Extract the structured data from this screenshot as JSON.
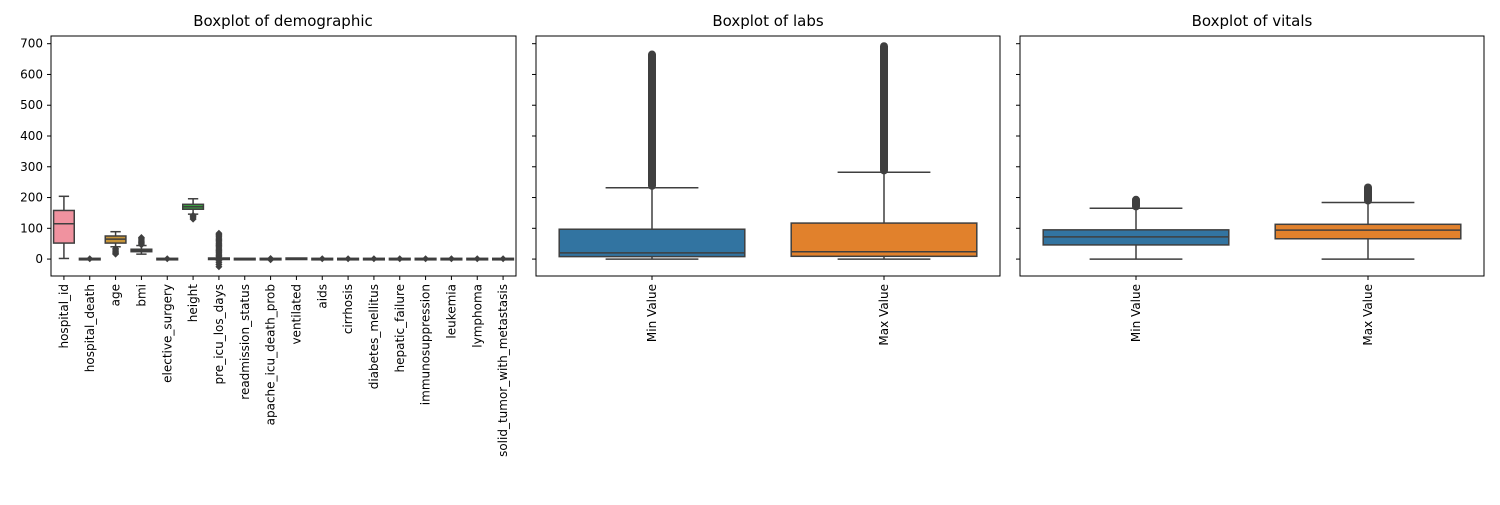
{
  "chart_data": [
    {
      "type": "box",
      "title": "Boxplot of demographic",
      "ylim": [
        -55,
        725
      ],
      "yticks": [
        0,
        100,
        200,
        300,
        400,
        500,
        600,
        700
      ],
      "categories": [
        "hospital_id",
        "hospital_death",
        "age",
        "bmi",
        "elective_surgery",
        "height",
        "pre_icu_los_days",
        "readmission_status",
        "apache_icu_death_prob",
        "ventilated",
        "aids",
        "cirrhosis",
        "diabetes_mellitus",
        "hepatic_failure",
        "immunosuppression",
        "leukemia",
        "lymphoma",
        "solid_tumor_with_metastasis"
      ],
      "colors": [
        "#f0929f",
        "#e99263",
        "#c8963a",
        "#a39c36",
        "#80a237",
        "#38a33f",
        "#3aa57d",
        "#3ca391",
        "#3ea0a0",
        "#3fa2b2",
        "#41a3c9",
        "#52a1e6",
        "#9a8ee6",
        "#cb7fe6",
        "#f07ae0",
        "#f47fbf",
        "#f485a5",
        "#f0929f"
      ],
      "boxes": [
        {
          "whislo": 2,
          "q1": 52,
          "med": 115,
          "q3": 158,
          "whishi": 204,
          "fliers": []
        },
        {
          "whislo": 0,
          "q1": 0,
          "med": 0,
          "q3": 0,
          "whishi": 0,
          "fliers": [
            1
          ]
        },
        {
          "whislo": 40,
          "q1": 52,
          "med": 65,
          "q3": 75,
          "whishi": 89,
          "fliers": [
            16,
            18,
            22,
            26,
            30,
            34
          ]
        },
        {
          "whislo": 16,
          "q1": 24,
          "med": 28,
          "q3": 32,
          "whishi": 44,
          "fliers": [
            46,
            50,
            54,
            58,
            62,
            66,
            70
          ]
        },
        {
          "whislo": 0,
          "q1": 0,
          "med": 0,
          "q3": 0,
          "whishi": 0,
          "fliers": [
            1
          ]
        },
        {
          "whislo": 146,
          "q1": 162,
          "med": 170,
          "q3": 178,
          "whishi": 196,
          "fliers": [
            130,
            134,
            138,
            142
          ]
        },
        {
          "whislo": 0,
          "q1": 0,
          "med": 0.2,
          "q3": 1,
          "whishi": 2,
          "fliers": [
            -25,
            -18,
            -12,
            -6,
            4,
            8,
            12,
            16,
            20,
            24,
            28,
            32,
            36,
            40,
            44,
            48,
            52,
            56,
            60,
            64,
            68,
            72,
            76,
            80,
            84
          ]
        },
        {
          "whislo": 0,
          "q1": 0,
          "med": 0,
          "q3": 0,
          "whishi": 0,
          "fliers": []
        },
        {
          "whislo": 0,
          "q1": 0,
          "med": 0,
          "q3": 0,
          "whishi": 0,
          "fliers": [
            -2,
            2
          ]
        },
        {
          "whislo": 0,
          "q1": 0,
          "med": 0,
          "q3": 1,
          "whishi": 1,
          "fliers": []
        },
        {
          "whislo": 0,
          "q1": 0,
          "med": 0,
          "q3": 0,
          "whishi": 0,
          "fliers": [
            1
          ]
        },
        {
          "whislo": 0,
          "q1": 0,
          "med": 0,
          "q3": 0,
          "whishi": 0,
          "fliers": [
            1
          ]
        },
        {
          "whislo": 0,
          "q1": 0,
          "med": 0,
          "q3": 0,
          "whishi": 0,
          "fliers": [
            1
          ]
        },
        {
          "whislo": 0,
          "q1": 0,
          "med": 0,
          "q3": 0,
          "whishi": 0,
          "fliers": [
            1
          ]
        },
        {
          "whislo": 0,
          "q1": 0,
          "med": 0,
          "q3": 0,
          "whishi": 0,
          "fliers": [
            1
          ]
        },
        {
          "whislo": 0,
          "q1": 0,
          "med": 0,
          "q3": 0,
          "whishi": 0,
          "fliers": [
            1
          ]
        },
        {
          "whislo": 0,
          "q1": 0,
          "med": 0,
          "q3": 0,
          "whishi": 0,
          "fliers": [
            1
          ]
        },
        {
          "whislo": 0,
          "q1": 0,
          "med": 0,
          "q3": 0,
          "whishi": 0,
          "fliers": [
            1
          ]
        }
      ]
    },
    {
      "type": "box",
      "title": "Boxplot of labs",
      "ylim": [
        -55,
        725
      ],
      "categories": [
        "Min Value",
        "Max Value"
      ],
      "colors": [
        "#3274a1",
        "#e1812c"
      ],
      "boxes": [
        {
          "whislo": 0,
          "q1": 8,
          "med": 20,
          "q3": 97,
          "whishi": 232,
          "flier_range": [
            235,
            668
          ]
        },
        {
          "whislo": 0,
          "q1": 9,
          "med": 24,
          "q3": 117,
          "whishi": 282,
          "flier_range": [
            285,
            695
          ]
        }
      ]
    },
    {
      "type": "box",
      "title": "Boxplot of vitals",
      "ylim": [
        -55,
        725
      ],
      "categories": [
        "Min Value",
        "Max Value"
      ],
      "colors": [
        "#3274a1",
        "#e1812c"
      ],
      "boxes": [
        {
          "whislo": 0,
          "q1": 46,
          "med": 72,
          "q3": 95,
          "whishi": 165,
          "flier_range": [
            168,
            196
          ]
        },
        {
          "whislo": 0,
          "q1": 66,
          "med": 94,
          "q3": 113,
          "whishi": 184,
          "flier_range": [
            187,
            236
          ]
        }
      ]
    }
  ]
}
